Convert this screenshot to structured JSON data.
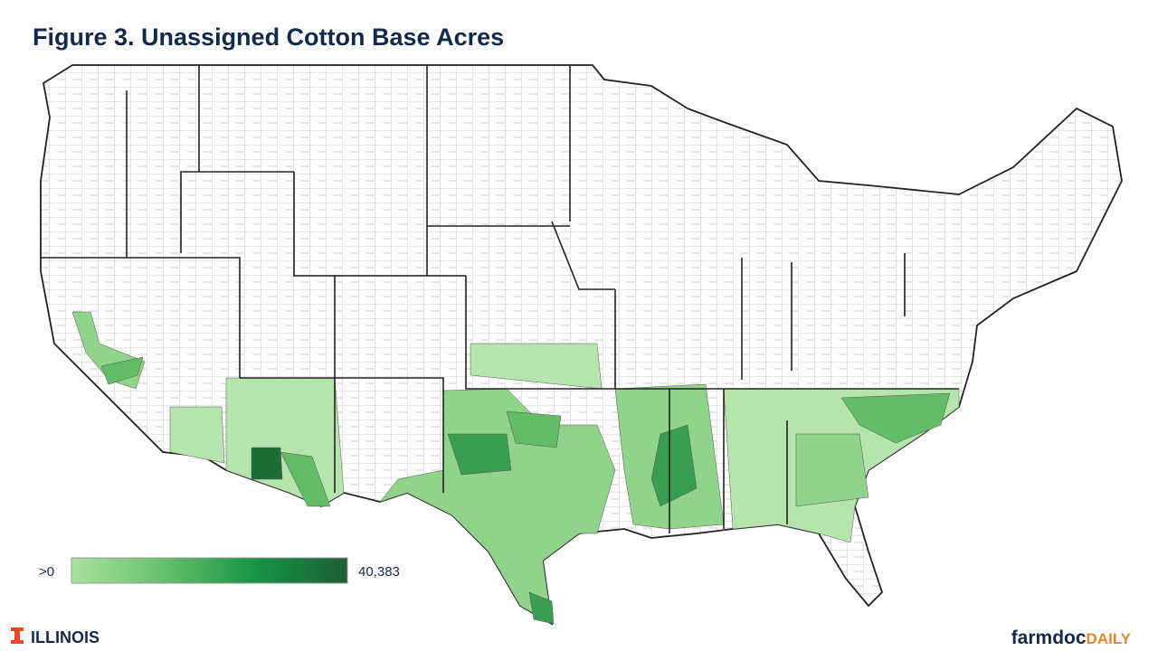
{
  "header": {
    "title": "Figure 3. Unassigned Cotton Base Acres"
  },
  "legend": {
    "min_label": ">0",
    "max_label": "40,383",
    "colors": [
      "#a8e3a1",
      "#66c06c",
      "#159447",
      "#1d5f34"
    ]
  },
  "footer": {
    "left": "ILLINOIS",
    "brand": "farmdoc",
    "brand_suffix": "DAILY"
  }
}
